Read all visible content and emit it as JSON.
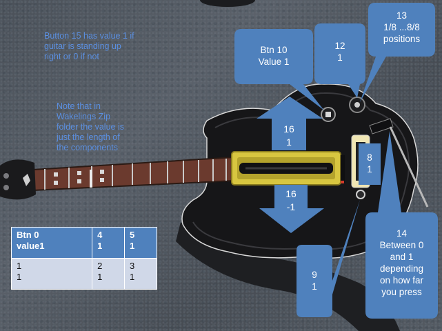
{
  "notes": {
    "button15": "Button 15 has value 1 if\nguitar is standing up\nright or 0 if not",
    "wakelings": "Note that in\nWakelings Zip\nfolder the value is\njust the length of\nthe components"
  },
  "callouts": {
    "btn10": "Btn 10\nValue 1",
    "btn12": "12\n1",
    "btn13": "13\n1/8 ...8/8\npositions",
    "btn8": "8\n1",
    "btn9": "9\n1",
    "btn14": "14\nBetween 0\nand 1\ndepending\non how far\nyou press"
  },
  "arrows": {
    "up": "16\n1",
    "down": "16\n-1"
  },
  "table": {
    "header": [
      "Btn 0\nvalue1",
      "4\n1",
      "5\n1"
    ],
    "row": [
      "1\n1",
      "2\n1",
      "3\n1"
    ]
  },
  "colors": {
    "callout_fill": "#4f81bd",
    "note_text": "#5b8fe0",
    "table_header": "#4f81bd",
    "table_body": "#d0d8e8",
    "pickguard": "#d8c640"
  }
}
